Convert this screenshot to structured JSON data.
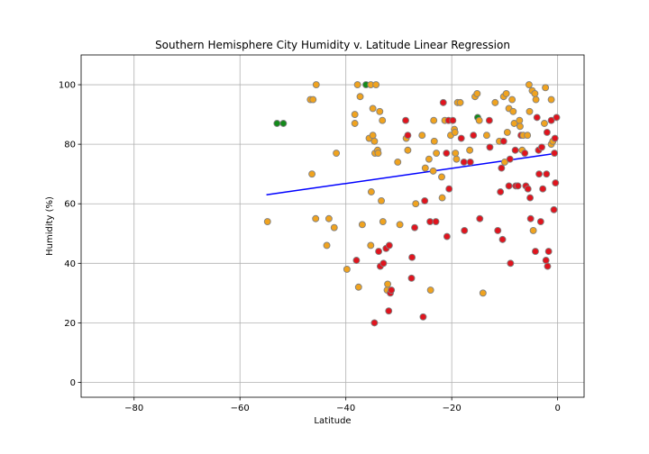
{
  "chart_data": {
    "type": "scatter",
    "title": "Southern Hemisphere City Humidity v. Latitude Linear Regression",
    "xlabel": "Latitude",
    "ylabel": "Humidity (%)",
    "xlim": [
      -90,
      5
    ],
    "ylim": [
      -5,
      110
    ],
    "xticks": [
      -80,
      -60,
      -40,
      -20,
      0
    ],
    "yticks": [
      0,
      20,
      40,
      60,
      80,
      100
    ],
    "grid": true,
    "colors": {
      "orange_fill": "#f0a31f",
      "red_fill": "#e0141e",
      "green_fill": "#138a1b",
      "edge": "#808080",
      "regression_line": "#0000ff"
    },
    "regression": {
      "x": [
        -55,
        0
      ],
      "y": [
        63,
        77
      ]
    },
    "points": [
      {
        "x": -54.8,
        "y": 54,
        "c": "orange"
      },
      {
        "x": -53,
        "y": 87,
        "c": "green"
      },
      {
        "x": -51.8,
        "y": 87,
        "c": "green"
      },
      {
        "x": -46.7,
        "y": 95,
        "c": "orange"
      },
      {
        "x": -46.2,
        "y": 95,
        "c": "orange"
      },
      {
        "x": -45.6,
        "y": 100,
        "c": "orange"
      },
      {
        "x": -46.4,
        "y": 70,
        "c": "orange"
      },
      {
        "x": -45.7,
        "y": 55,
        "c": "orange"
      },
      {
        "x": -43.6,
        "y": 46,
        "c": "orange"
      },
      {
        "x": -43.2,
        "y": 55,
        "c": "orange"
      },
      {
        "x": -42.2,
        "y": 52,
        "c": "orange"
      },
      {
        "x": -41.8,
        "y": 77,
        "c": "orange"
      },
      {
        "x": -39.8,
        "y": 38,
        "c": "orange"
      },
      {
        "x": -38.3,
        "y": 90,
        "c": "orange"
      },
      {
        "x": -38.3,
        "y": 87,
        "c": "orange"
      },
      {
        "x": -37.8,
        "y": 100,
        "c": "orange"
      },
      {
        "x": -37.3,
        "y": 96,
        "c": "orange"
      },
      {
        "x": -36.2,
        "y": 100,
        "c": "green"
      },
      {
        "x": -35.3,
        "y": 100,
        "c": "orange"
      },
      {
        "x": -34.3,
        "y": 100,
        "c": "orange"
      },
      {
        "x": -36.9,
        "y": 53,
        "c": "orange"
      },
      {
        "x": -38,
        "y": 41,
        "c": "red"
      },
      {
        "x": -37.6,
        "y": 32,
        "c": "orange"
      },
      {
        "x": -35.6,
        "y": 82,
        "c": "orange"
      },
      {
        "x": -35.2,
        "y": 64,
        "c": "orange"
      },
      {
        "x": -35.3,
        "y": 46,
        "c": "orange"
      },
      {
        "x": -34.9,
        "y": 92,
        "c": "orange"
      },
      {
        "x": -34.9,
        "y": 83,
        "c": "orange"
      },
      {
        "x": -34.6,
        "y": 81,
        "c": "orange"
      },
      {
        "x": -34.5,
        "y": 77,
        "c": "orange"
      },
      {
        "x": -34,
        "y": 78,
        "c": "orange"
      },
      {
        "x": -33.9,
        "y": 77,
        "c": "orange"
      },
      {
        "x": -34.6,
        "y": 20,
        "c": "red"
      },
      {
        "x": -33.8,
        "y": 44,
        "c": "red"
      },
      {
        "x": -33.5,
        "y": 39,
        "c": "red"
      },
      {
        "x": -33.6,
        "y": 91,
        "c": "orange"
      },
      {
        "x": -33.3,
        "y": 61,
        "c": "orange"
      },
      {
        "x": -33.1,
        "y": 88,
        "c": "orange"
      },
      {
        "x": -33,
        "y": 54,
        "c": "orange"
      },
      {
        "x": -32.9,
        "y": 40,
        "c": "red"
      },
      {
        "x": -32.4,
        "y": 45,
        "c": "red"
      },
      {
        "x": -32.2,
        "y": 31,
        "c": "orange"
      },
      {
        "x": -32.1,
        "y": 33,
        "c": "orange"
      },
      {
        "x": -31.9,
        "y": 24,
        "c": "red"
      },
      {
        "x": -31.8,
        "y": 46,
        "c": "red"
      },
      {
        "x": -31.6,
        "y": 30,
        "c": "red"
      },
      {
        "x": -31.4,
        "y": 31,
        "c": "red"
      },
      {
        "x": -30.2,
        "y": 74,
        "c": "orange"
      },
      {
        "x": -29.8,
        "y": 53,
        "c": "orange"
      },
      {
        "x": -28.7,
        "y": 88,
        "c": "red"
      },
      {
        "x": -28.6,
        "y": 82,
        "c": "orange"
      },
      {
        "x": -28.3,
        "y": 83,
        "c": "red"
      },
      {
        "x": -28.3,
        "y": 78,
        "c": "orange"
      },
      {
        "x": -27.6,
        "y": 35,
        "c": "red"
      },
      {
        "x": -27.5,
        "y": 42,
        "c": "red"
      },
      {
        "x": -27,
        "y": 52,
        "c": "red"
      },
      {
        "x": -26.8,
        "y": 60,
        "c": "orange"
      },
      {
        "x": -25.6,
        "y": 83,
        "c": "orange"
      },
      {
        "x": -25.4,
        "y": 22,
        "c": "red"
      },
      {
        "x": -25.1,
        "y": 61,
        "c": "red"
      },
      {
        "x": -25,
        "y": 72,
        "c": "orange"
      },
      {
        "x": -24.3,
        "y": 75,
        "c": "orange"
      },
      {
        "x": -24.1,
        "y": 54,
        "c": "red"
      },
      {
        "x": -24,
        "y": 31,
        "c": "orange"
      },
      {
        "x": -23.5,
        "y": 71,
        "c": "orange"
      },
      {
        "x": -23.4,
        "y": 88,
        "c": "orange"
      },
      {
        "x": -23.3,
        "y": 81,
        "c": "orange"
      },
      {
        "x": -23,
        "y": 54,
        "c": "red"
      },
      {
        "x": -22.9,
        "y": 77,
        "c": "orange"
      },
      {
        "x": -21.9,
        "y": 69,
        "c": "orange"
      },
      {
        "x": -21.8,
        "y": 62,
        "c": "orange"
      },
      {
        "x": -21.6,
        "y": 94,
        "c": "red"
      },
      {
        "x": -21.3,
        "y": 88,
        "c": "orange"
      },
      {
        "x": -21,
        "y": 77,
        "c": "red"
      },
      {
        "x": -20.9,
        "y": 49,
        "c": "red"
      },
      {
        "x": -20.6,
        "y": 88,
        "c": "red"
      },
      {
        "x": -20.5,
        "y": 65,
        "c": "red"
      },
      {
        "x": -20.2,
        "y": 83,
        "c": "orange"
      },
      {
        "x": -19.8,
        "y": 88,
        "c": "red"
      },
      {
        "x": -19.5,
        "y": 85,
        "c": "orange"
      },
      {
        "x": -19.4,
        "y": 84,
        "c": "orange"
      },
      {
        "x": -19.3,
        "y": 77,
        "c": "orange"
      },
      {
        "x": -19.1,
        "y": 75,
        "c": "orange"
      },
      {
        "x": -18.9,
        "y": 94,
        "c": "orange"
      },
      {
        "x": -18.4,
        "y": 94,
        "c": "orange"
      },
      {
        "x": -18.2,
        "y": 82,
        "c": "red"
      },
      {
        "x": -17.7,
        "y": 74,
        "c": "red"
      },
      {
        "x": -17.6,
        "y": 51,
        "c": "red"
      },
      {
        "x": -16.6,
        "y": 78,
        "c": "orange"
      },
      {
        "x": -16.5,
        "y": 74,
        "c": "red"
      },
      {
        "x": -15.9,
        "y": 83,
        "c": "red"
      },
      {
        "x": -15.6,
        "y": 96,
        "c": "orange"
      },
      {
        "x": -15.2,
        "y": 97,
        "c": "orange"
      },
      {
        "x": -15.1,
        "y": 89,
        "c": "green"
      },
      {
        "x": -14.8,
        "y": 88,
        "c": "orange"
      },
      {
        "x": -14.7,
        "y": 55,
        "c": "red"
      },
      {
        "x": -14.1,
        "y": 30,
        "c": "orange"
      },
      {
        "x": -13.4,
        "y": 83,
        "c": "orange"
      },
      {
        "x": -12.9,
        "y": 88,
        "c": "red"
      },
      {
        "x": -12.8,
        "y": 79,
        "c": "red"
      },
      {
        "x": -11.8,
        "y": 94,
        "c": "orange"
      },
      {
        "x": -11.3,
        "y": 51,
        "c": "red"
      },
      {
        "x": -11,
        "y": 81,
        "c": "orange"
      },
      {
        "x": -10.8,
        "y": 64,
        "c": "red"
      },
      {
        "x": -10.6,
        "y": 72,
        "c": "red"
      },
      {
        "x": -10.4,
        "y": 48,
        "c": "red"
      },
      {
        "x": -10.2,
        "y": 96,
        "c": "orange"
      },
      {
        "x": -10.2,
        "y": 81,
        "c": "red"
      },
      {
        "x": -10,
        "y": 74,
        "c": "orange"
      },
      {
        "x": -9.7,
        "y": 97,
        "c": "orange"
      },
      {
        "x": -9.5,
        "y": 84,
        "c": "orange"
      },
      {
        "x": -9.2,
        "y": 92,
        "c": "orange"
      },
      {
        "x": -9.2,
        "y": 66,
        "c": "red"
      },
      {
        "x": -9,
        "y": 75,
        "c": "red"
      },
      {
        "x": -8.9,
        "y": 40,
        "c": "red"
      },
      {
        "x": -8.6,
        "y": 95,
        "c": "orange"
      },
      {
        "x": -8.4,
        "y": 91,
        "c": "orange"
      },
      {
        "x": -8.2,
        "y": 87,
        "c": "orange"
      },
      {
        "x": -8,
        "y": 78,
        "c": "red"
      },
      {
        "x": -7.9,
        "y": 66,
        "c": "red"
      },
      {
        "x": -7.5,
        "y": 66,
        "c": "red"
      },
      {
        "x": -7.2,
        "y": 88,
        "c": "orange"
      },
      {
        "x": -7.1,
        "y": 86,
        "c": "orange"
      },
      {
        "x": -6.9,
        "y": 83,
        "c": "red"
      },
      {
        "x": -6.7,
        "y": 78,
        "c": "orange"
      },
      {
        "x": -6.5,
        "y": 83,
        "c": "orange"
      },
      {
        "x": -6.2,
        "y": 77,
        "c": "red"
      },
      {
        "x": -6,
        "y": 66,
        "c": "red"
      },
      {
        "x": -5.7,
        "y": 83,
        "c": "orange"
      },
      {
        "x": -5.6,
        "y": 65,
        "c": "red"
      },
      {
        "x": -5.4,
        "y": 100,
        "c": "orange"
      },
      {
        "x": -5.3,
        "y": 91,
        "c": "orange"
      },
      {
        "x": -5.2,
        "y": 62,
        "c": "red"
      },
      {
        "x": -5.1,
        "y": 55,
        "c": "red"
      },
      {
        "x": -4.8,
        "y": 98,
        "c": "orange"
      },
      {
        "x": -4.6,
        "y": 51,
        "c": "orange"
      },
      {
        "x": -4.3,
        "y": 97,
        "c": "orange"
      },
      {
        "x": -4.1,
        "y": 95,
        "c": "orange"
      },
      {
        "x": -4.2,
        "y": 44,
        "c": "red"
      },
      {
        "x": -3.9,
        "y": 89,
        "c": "red"
      },
      {
        "x": -3.6,
        "y": 78,
        "c": "red"
      },
      {
        "x": -3.5,
        "y": 70,
        "c": "red"
      },
      {
        "x": -3.2,
        "y": 54,
        "c": "red"
      },
      {
        "x": -3,
        "y": 79,
        "c": "red"
      },
      {
        "x": -2.8,
        "y": 65,
        "c": "red"
      },
      {
        "x": -2.5,
        "y": 87,
        "c": "orange"
      },
      {
        "x": -2.3,
        "y": 99,
        "c": "orange"
      },
      {
        "x": -2.2,
        "y": 41,
        "c": "red"
      },
      {
        "x": -2,
        "y": 84,
        "c": "red"
      },
      {
        "x": -2.1,
        "y": 70,
        "c": "red"
      },
      {
        "x": -1.9,
        "y": 39,
        "c": "red"
      },
      {
        "x": -1.7,
        "y": 44,
        "c": "red"
      },
      {
        "x": -1.2,
        "y": 80,
        "c": "orange"
      },
      {
        "x": -1.2,
        "y": 95,
        "c": "orange"
      },
      {
        "x": -1.2,
        "y": 88,
        "c": "red"
      },
      {
        "x": -0.9,
        "y": 81,
        "c": "orange"
      },
      {
        "x": -0.7,
        "y": 58,
        "c": "red"
      },
      {
        "x": -0.6,
        "y": 77,
        "c": "red"
      },
      {
        "x": -0.5,
        "y": 82,
        "c": "red"
      },
      {
        "x": -0.4,
        "y": 67,
        "c": "red"
      },
      {
        "x": -0.2,
        "y": 89,
        "c": "red"
      }
    ]
  }
}
